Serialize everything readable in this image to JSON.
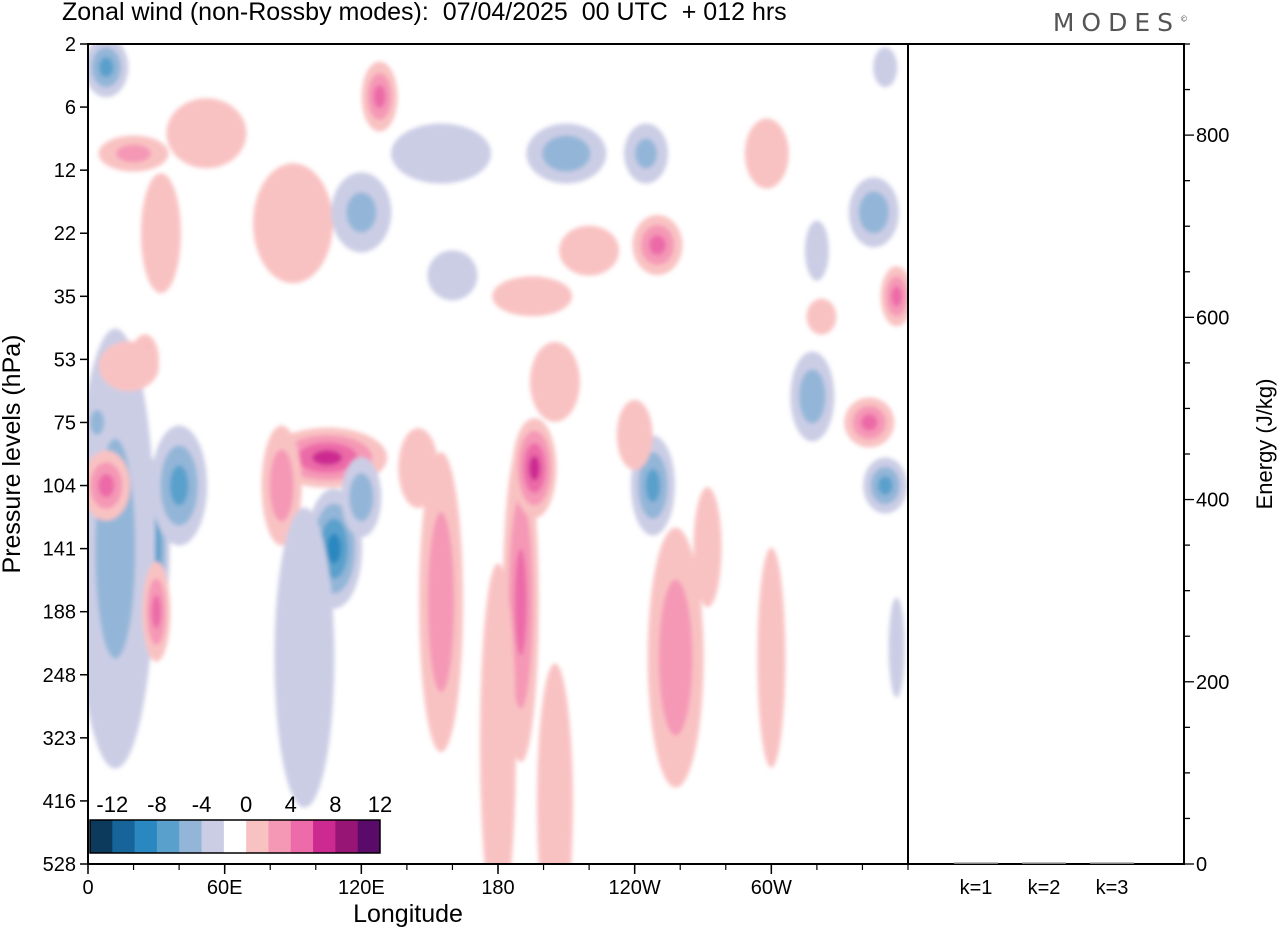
{
  "header": {
    "title": "Zonal wind (non-Rossby modes):  07/04/2025  00 UTC  + 012 hrs",
    "logo": "MODES",
    "logo_mark": "©"
  },
  "chart_data": [
    {
      "type": "heatmap",
      "title": "Zonal wind (non-Rossby modes):  07/04/2025  00 UTC  + 012 hrs",
      "xlabel": "Longitude",
      "ylabel": "Pressure levels (hPa)",
      "x_tick_labels": [
        "0",
        "60E",
        "120E",
        "180",
        "120W",
        "60W"
      ],
      "x_ticks_deg": [
        0,
        60,
        120,
        180,
        240,
        300
      ],
      "xlim_deg": [
        0,
        360
      ],
      "y_tick_labels": [
        "2",
        "6",
        "12",
        "22",
        "35",
        "53",
        "75",
        "104",
        "141",
        "188",
        "248",
        "323",
        "416",
        "528"
      ],
      "y_inverted": true,
      "colorbar": {
        "labels": [
          "-12",
          "-8",
          "-4",
          "0",
          "4",
          "8",
          "12"
        ],
        "levels": [
          -14,
          -12,
          -10,
          -8,
          -6,
          -4,
          -2,
          2,
          4,
          6,
          8,
          10,
          12,
          14
        ],
        "colors": [
          "#0b3a5c",
          "#16649a",
          "#2a88c0",
          "#5aa0cc",
          "#93b6d8",
          "#cbcde5",
          "#ffffff",
          "#f9c2c2",
          "#f598b6",
          "#ec6ba8",
          "#cc2a91",
          "#971575",
          "#5a0b6a"
        ],
        "placement": "bottom-left"
      },
      "colors": {
        "negative": "#cbcde5",
        "negative_strong": "#5aa0cc",
        "positive": "#f9c2c2",
        "positive_strong": "#ec6ba8"
      },
      "features": [
        {
          "lon": 12,
          "level": 188,
          "value": -10,
          "sx": 20,
          "sy": 120
        },
        {
          "lon": 28,
          "level": 141,
          "value": -8,
          "sx": 18,
          "sy": 90
        },
        {
          "lon": 40,
          "level": 104,
          "value": -6,
          "sx": 28,
          "sy": 60
        },
        {
          "lon": 12,
          "level": 141,
          "value": -4,
          "sx": 40,
          "sy": 220
        },
        {
          "lon": 8,
          "level": 3,
          "value": -6,
          "sx": 22,
          "sy": 30
        },
        {
          "lon": 4,
          "level": 75,
          "value": -4,
          "sx": 14,
          "sy": 25
        },
        {
          "lon": 8,
          "level": 104,
          "value": 6,
          "sx": 24,
          "sy": 35
        },
        {
          "lon": 30,
          "level": 188,
          "value": 6,
          "sx": 14,
          "sy": 50
        },
        {
          "lon": 25,
          "level": 53,
          "value": 5,
          "sx": 14,
          "sy": 25
        },
        {
          "lon": 20,
          "level": 10,
          "value": 4,
          "sx": 35,
          "sy": 18
        },
        {
          "lon": 32,
          "level": 22,
          "value": 2,
          "sx": 20,
          "sy": 60
        },
        {
          "lon": 18,
          "level": 55,
          "value": 2,
          "sx": 30,
          "sy": 25
        },
        {
          "lon": 52,
          "level": 8,
          "value": 2,
          "sx": 40,
          "sy": 35
        },
        {
          "lon": 90,
          "level": 20,
          "value": 2,
          "sx": 40,
          "sy": 60
        },
        {
          "lon": 105,
          "level": 90,
          "value": 8,
          "sx": 60,
          "sy": 30
        },
        {
          "lon": 85,
          "level": 104,
          "value": 5,
          "sx": 20,
          "sy": 60
        },
        {
          "lon": 108,
          "level": 141,
          "value": -8,
          "sx": 28,
          "sy": 60
        },
        {
          "lon": 120,
          "level": 110,
          "value": -5,
          "sx": 20,
          "sy": 40
        },
        {
          "lon": 95,
          "level": 230,
          "value": -2,
          "sx": 30,
          "sy": 150
        },
        {
          "lon": 128,
          "level": 5,
          "value": 6,
          "sx": 18,
          "sy": 35
        },
        {
          "lon": 120,
          "level": 18,
          "value": -4,
          "sx": 30,
          "sy": 40
        },
        {
          "lon": 155,
          "level": 10,
          "value": -2,
          "sx": 50,
          "sy": 30
        },
        {
          "lon": 160,
          "level": 30,
          "value": -2,
          "sx": 25,
          "sy": 25
        },
        {
          "lon": 145,
          "level": 95,
          "value": 2,
          "sx": 20,
          "sy": 40
        },
        {
          "lon": 155,
          "level": 180,
          "value": 5,
          "sx": 22,
          "sy": 150
        },
        {
          "lon": 190,
          "level": 180,
          "value": 6,
          "sx": 18,
          "sy": 160
        },
        {
          "lon": 180,
          "level": 330,
          "value": 2,
          "sx": 18,
          "sy": 180
        },
        {
          "lon": 205,
          "level": 420,
          "value": 2,
          "sx": 18,
          "sy": 140
        },
        {
          "lon": 196,
          "level": 95,
          "value": 8,
          "sx": 22,
          "sy": 50
        },
        {
          "lon": 205,
          "level": 60,
          "value": 2,
          "sx": 25,
          "sy": 40
        },
        {
          "lon": 195,
          "level": 35,
          "value": 2,
          "sx": 40,
          "sy": 20
        },
        {
          "lon": 210,
          "level": 10,
          "value": -5,
          "sx": 40,
          "sy": 30
        },
        {
          "lon": 220,
          "level": 25,
          "value": 2,
          "sx": 30,
          "sy": 25
        },
        {
          "lon": 245,
          "level": 10,
          "value": -4,
          "sx": 22,
          "sy": 30
        },
        {
          "lon": 250,
          "level": 24,
          "value": 6,
          "sx": 25,
          "sy": 30
        },
        {
          "lon": 248,
          "level": 104,
          "value": -6,
          "sx": 22,
          "sy": 50
        },
        {
          "lon": 258,
          "level": 230,
          "value": 5,
          "sx": 28,
          "sy": 130
        },
        {
          "lon": 240,
          "level": 80,
          "value": 2,
          "sx": 18,
          "sy": 35
        },
        {
          "lon": 272,
          "level": 140,
          "value": 2,
          "sx": 14,
          "sy": 60
        },
        {
          "lon": 300,
          "level": 230,
          "value": 2,
          "sx": 14,
          "sy": 110
        },
        {
          "lon": 298,
          "level": 10,
          "value": 2,
          "sx": 22,
          "sy": 35
        },
        {
          "lon": 318,
          "level": 65,
          "value": -5,
          "sx": 22,
          "sy": 45
        },
        {
          "lon": 322,
          "level": 40,
          "value": 2,
          "sx": 15,
          "sy": 18
        },
        {
          "lon": 343,
          "level": 75,
          "value": 6,
          "sx": 25,
          "sy": 25
        },
        {
          "lon": 350,
          "level": 104,
          "value": -6,
          "sx": 22,
          "sy": 28
        },
        {
          "lon": 345,
          "level": 18,
          "value": -5,
          "sx": 25,
          "sy": 35
        },
        {
          "lon": 355,
          "level": 35,
          "value": 6,
          "sx": 16,
          "sy": 30
        },
        {
          "lon": 355,
          "level": 220,
          "value": -2,
          "sx": 8,
          "sy": 50
        },
        {
          "lon": 320,
          "level": 25,
          "value": -2,
          "sx": 12,
          "sy": 30
        },
        {
          "lon": 350,
          "level": 3,
          "value": -2,
          "sx": 12,
          "sy": 20
        }
      ]
    },
    {
      "type": "bar",
      "categories": [
        "k=1",
        "k=2",
        "k=3"
      ],
      "values": [
        1.5,
        1.0,
        1.0
      ],
      "ylabel": "Energy (J/kg)",
      "ylim": [
        0,
        900
      ],
      "y_tick_labels": [
        "0",
        "200",
        "400",
        "600",
        "800"
      ],
      "bar_color": "#808080"
    }
  ]
}
